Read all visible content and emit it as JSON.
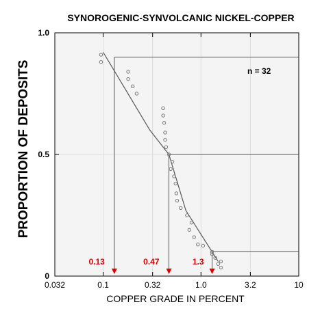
{
  "chart_data": {
    "type": "scatter",
    "title": "SYNOROGENIC-SYNVOLCANIC NICKEL-COPPER",
    "xlabel": "COPPER GRADE IN PERCENT",
    "ylabel": "PROPORTION OF DEPOSITS",
    "x_scale": "log",
    "xlim": [
      0.032,
      10
    ],
    "ylim": [
      0,
      1
    ],
    "x_ticks": [
      {
        "value": 0.032,
        "label": "0.032"
      },
      {
        "value": 0.1,
        "label": "0.1"
      },
      {
        "value": 0.32,
        "label": "0.32"
      },
      {
        "value": 1.0,
        "label": "1.0"
      },
      {
        "value": 3.2,
        "label": "3.2"
      },
      {
        "value": 10,
        "label": "10"
      }
    ],
    "y_ticks": [
      {
        "value": 0,
        "label": "0"
      },
      {
        "value": 0.5,
        "label": "0.5"
      },
      {
        "value": 1.0,
        "label": "1.0"
      }
    ],
    "annotation": "n = 32",
    "points": [
      {
        "x": 0.095,
        "y": 0.91
      },
      {
        "x": 0.095,
        "y": 0.88
      },
      {
        "x": 0.18,
        "y": 0.84
      },
      {
        "x": 0.18,
        "y": 0.81
      },
      {
        "x": 0.2,
        "y": 0.78
      },
      {
        "x": 0.22,
        "y": 0.75
      },
      {
        "x": 0.41,
        "y": 0.69
      },
      {
        "x": 0.41,
        "y": 0.66
      },
      {
        "x": 0.42,
        "y": 0.63
      },
      {
        "x": 0.43,
        "y": 0.59
      },
      {
        "x": 0.43,
        "y": 0.56
      },
      {
        "x": 0.44,
        "y": 0.53
      },
      {
        "x": 0.47,
        "y": 0.5
      },
      {
        "x": 0.51,
        "y": 0.47
      },
      {
        "x": 0.49,
        "y": 0.44
      },
      {
        "x": 0.53,
        "y": 0.41
      },
      {
        "x": 0.55,
        "y": 0.38
      },
      {
        "x": 0.56,
        "y": 0.34
      },
      {
        "x": 0.57,
        "y": 0.31
      },
      {
        "x": 0.62,
        "y": 0.28
      },
      {
        "x": 0.72,
        "y": 0.25
      },
      {
        "x": 0.8,
        "y": 0.22
      },
      {
        "x": 0.76,
        "y": 0.19
      },
      {
        "x": 0.85,
        "y": 0.16
      },
      {
        "x": 0.93,
        "y": 0.13
      },
      {
        "x": 1.05,
        "y": 0.125
      },
      {
        "x": 1.3,
        "y": 0.1
      },
      {
        "x": 1.3,
        "y": 0.09
      },
      {
        "x": 1.4,
        "y": 0.075
      },
      {
        "x": 1.6,
        "y": 0.06
      },
      {
        "x": 1.6,
        "y": 0.035
      },
      {
        "x": 1.5,
        "y": 0.05
      }
    ],
    "fit_curve": [
      {
        "x": 0.1,
        "y": 0.92
      },
      {
        "x": 0.3,
        "y": 0.6
      },
      {
        "x": 0.47,
        "y": 0.5
      },
      {
        "x": 0.7,
        "y": 0.27
      },
      {
        "x": 1.5,
        "y": 0.06
      }
    ],
    "percentiles": [
      {
        "label": "0.13",
        "x": 0.13,
        "y": 0.9
      },
      {
        "label": "0.47",
        "x": 0.47,
        "y": 0.5
      },
      {
        "label": "1.3",
        "x": 1.3,
        "y": 0.1
      }
    ],
    "colors": {
      "percentile_label": "#dd0000",
      "points": "#777777",
      "fit": "#555555",
      "plot_background": "#f4f4f4"
    }
  }
}
